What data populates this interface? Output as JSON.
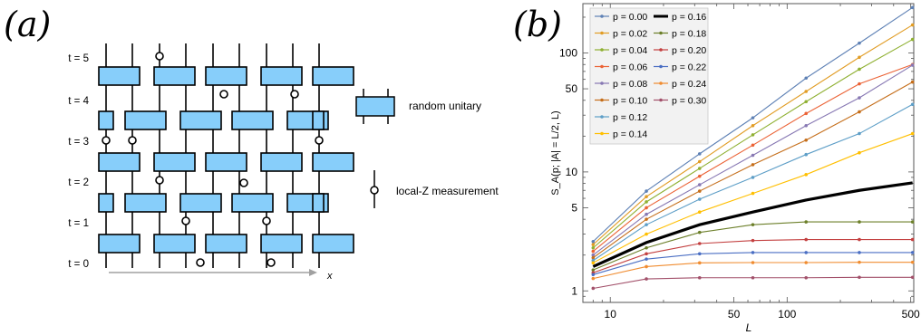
{
  "panel_a": {
    "label": "(a)",
    "time_labels": [
      "t = 0",
      "t = 1",
      "t = 2",
      "t = 3",
      "t = 4",
      "t = 5"
    ],
    "x_axis_label": "x",
    "legend": {
      "unitary_label": "random unitary",
      "measurement_label": "local-Z measurement"
    },
    "colors": {
      "gate_fill": "#87cefa",
      "gate_stroke": "#000000",
      "axis_arrow": "#a0a0a0"
    }
  },
  "chart_data": {
    "type": "line",
    "panel_label": "(b)",
    "xlabel": "L",
    "ylabel": "S_A(p; |A| = L/2, L)",
    "xscale": "log",
    "yscale": "log",
    "xlim": [
      7,
      520
    ],
    "ylim": [
      0.8,
      260
    ],
    "xticks": [
      10,
      50,
      100,
      500
    ],
    "yticks": [
      1,
      5,
      10,
      50,
      100
    ],
    "x": [
      8,
      16,
      32,
      64,
      128,
      256,
      512
    ],
    "legend_position": "top-left",
    "series": [
      {
        "name": "p = 0.00",
        "color": "#5e81b5",
        "values": [
          2.6,
          6.9,
          14.2,
          28.5,
          61.5,
          121,
          241
        ]
      },
      {
        "name": "p = 0.02",
        "color": "#e19c24",
        "values": [
          2.45,
          6.2,
          12.2,
          24.5,
          47.5,
          92,
          172
        ]
      },
      {
        "name": "p = 0.04",
        "color": "#8fb032",
        "values": [
          2.3,
          5.6,
          10.7,
          20.5,
          39,
          73,
          130
        ]
      },
      {
        "name": "p = 0.06",
        "color": "#eb6235",
        "values": [
          2.15,
          5.0,
          9.2,
          16.8,
          31,
          55,
          80
        ]
      },
      {
        "name": "p = 0.08",
        "color": "#8778b3",
        "values": [
          2.0,
          4.4,
          7.8,
          13.8,
          24.5,
          42,
          79
        ]
      },
      {
        "name": "p = 0.10",
        "color": "#c56e1a",
        "values": [
          1.9,
          4.0,
          6.9,
          11.5,
          18.5,
          32,
          57
        ]
      },
      {
        "name": "p = 0.12",
        "color": "#5d9ec7",
        "values": [
          1.8,
          3.6,
          5.9,
          9.0,
          14,
          21,
          37
        ]
      },
      {
        "name": "p = 0.14",
        "color": "#ffbf00",
        "values": [
          1.72,
          3.0,
          4.6,
          6.6,
          9.5,
          14.5,
          21
        ]
      },
      {
        "name": "p = 0.16",
        "color": "#000000",
        "values": [
          1.6,
          2.55,
          3.6,
          4.6,
          5.8,
          7.0,
          8.1
        ]
      },
      {
        "name": "p = 0.18",
        "color": "#6c7f29",
        "values": [
          1.5,
          2.3,
          3.1,
          3.6,
          3.8,
          3.8,
          3.8
        ]
      },
      {
        "name": "p = 0.20",
        "color": "#c33f3f",
        "values": [
          1.42,
          2.05,
          2.5,
          2.65,
          2.7,
          2.7,
          2.7
        ]
      },
      {
        "name": "p = 0.22",
        "color": "#4a6ec3",
        "values": [
          1.37,
          1.85,
          2.05,
          2.1,
          2.1,
          2.1,
          2.1
        ]
      },
      {
        "name": "p = 0.24",
        "color": "#f08c30",
        "values": [
          1.27,
          1.6,
          1.72,
          1.73,
          1.73,
          1.74,
          1.74
        ]
      },
      {
        "name": "p = 0.30",
        "color": "#a2506a",
        "values": [
          1.05,
          1.26,
          1.29,
          1.29,
          1.29,
          1.3,
          1.3
        ]
      }
    ]
  }
}
